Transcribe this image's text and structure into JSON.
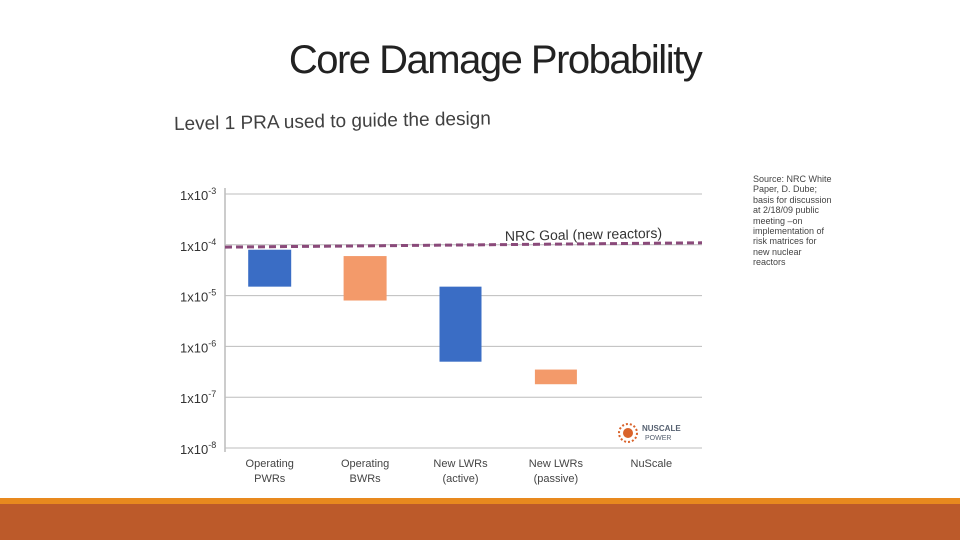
{
  "slide": {
    "title": "Core Damage Probability"
  },
  "source_note": "Source: NRC White Paper, D. Dube; basis for discussion at 2/18/09 public meeting –on implementation of risk matrices for new nuclear reactors",
  "logo": {
    "line1": "NUSCALE",
    "line2": "POWER",
    "colors": {
      "dots": "#d9632b",
      "text": "#556070"
    }
  },
  "colors": {
    "pwr_blue": "#3a6dc5",
    "bwr_orange": "#f39a6a",
    "goal_line": "#8a4a7a",
    "grid": "#bdbdbd",
    "bottom_line": "#e8891e",
    "bottom_band": "#bc5a2a"
  },
  "chart_data": {
    "type": "bar",
    "title": "Level 1 PRA used to guide the design",
    "y_scale": "log",
    "ylim": [
      1e-08,
      0.001
    ],
    "y_ticks": [
      {
        "base": "1x10",
        "exp": "-3",
        "value": 0.001
      },
      {
        "base": "1x10",
        "exp": "-4",
        "value": 0.0001
      },
      {
        "base": "1x10",
        "exp": "-5",
        "value": 1e-05
      },
      {
        "base": "1x10",
        "exp": "-6",
        "value": 1e-06
      },
      {
        "base": "1x10",
        "exp": "-7",
        "value": 1e-07
      },
      {
        "base": "1x10",
        "exp": "-8",
        "value": 1e-08
      }
    ],
    "grid": true,
    "categories": [
      {
        "line1": "Operating",
        "line2": "PWRs"
      },
      {
        "line1": "Operating",
        "line2": "BWRs"
      },
      {
        "line1": "New LWRs",
        "line2": "(active)"
      },
      {
        "line1": "New LWRs",
        "line2": "(passive)"
      },
      {
        "line1": "NuScale",
        "line2": ""
      }
    ],
    "ranges": [
      {
        "low": 1.5e-05,
        "high": 8e-05,
        "color": "#3a6dc5"
      },
      {
        "low": 8e-06,
        "high": 6e-05,
        "color": "#f39a6a"
      },
      {
        "low": 5e-07,
        "high": 1.5e-05,
        "color": "#3a6dc5"
      },
      {
        "low": 1.8e-07,
        "high": 3.5e-07,
        "color": "#f39a6a"
      },
      null
    ],
    "reference_line": {
      "label": "NRC Goal (new reactors)",
      "value": 0.0001,
      "start_value": 9e-05,
      "color": "#8a4a7a"
    }
  }
}
